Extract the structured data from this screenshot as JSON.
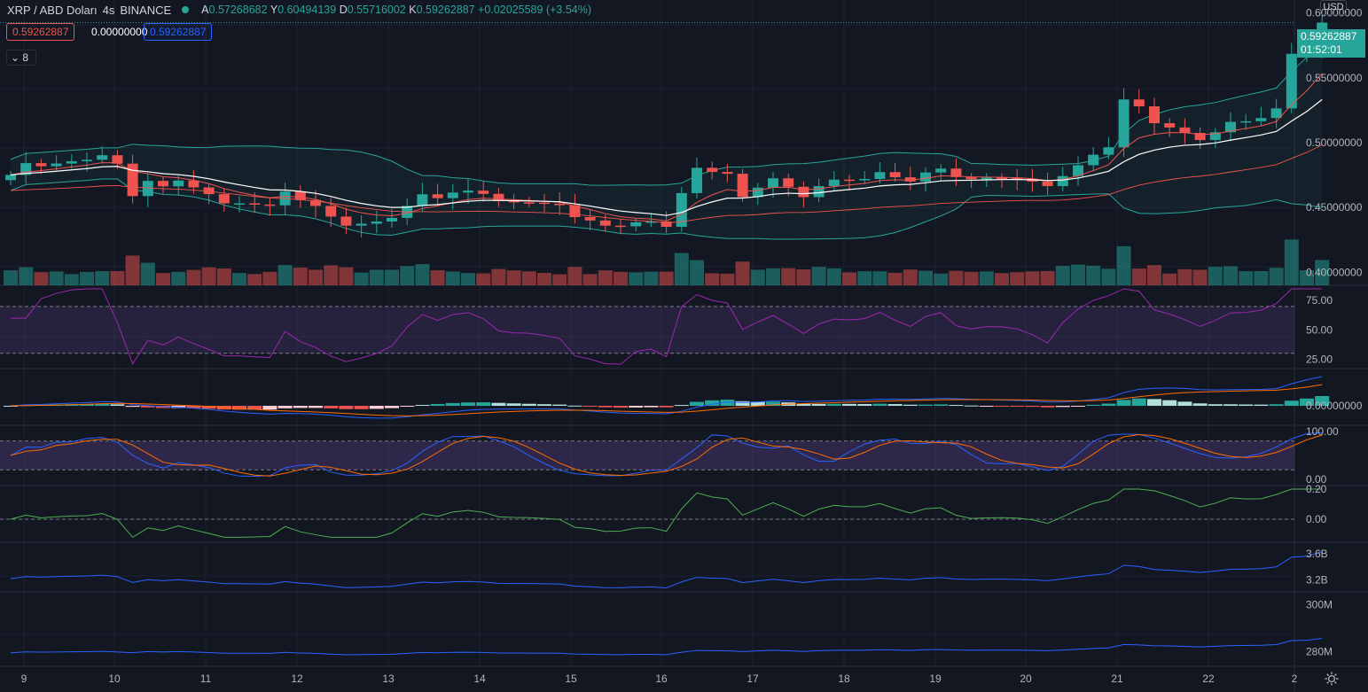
{
  "header": {
    "symbol": "XRP / ABD Doları",
    "interval": "4s",
    "exchange": "BINANCE",
    "ohlc_line": "A0.57268682 Y0.60494139 D0.55716002 K0.59262887 +0.02025589 (+3.54%)",
    "o_label": "A",
    "o_value": "0.57268682",
    "h_label": "Y",
    "h_value": "0.60494139",
    "l_label": "D",
    "l_value": "0.55716002",
    "c_label": "K",
    "c_value": "0.59262887",
    "change": "+0.02025589 (+3.54%)",
    "status_color": "#26a69a"
  },
  "trading": {
    "sell_price": "0.59262887",
    "spread": "0.00000000",
    "buy_price": "0.59262887",
    "indicator_count": "8"
  },
  "price_scale": {
    "currency": "USD",
    "last_price": "0.59262887",
    "countdown": "01:52:01",
    "ticks": [
      "0.60000000",
      "0.55000000",
      "0.50000000",
      "0.45000000",
      "0.40000000"
    ]
  },
  "panes": {
    "rsi": {
      "ticks": [
        "75.00",
        "50.00",
        "25.00"
      ]
    },
    "macd": {
      "ticks": [
        "0.00000000"
      ]
    },
    "stoch": {
      "ticks": [
        "100.00",
        "0.00"
      ]
    },
    "osc": {
      "ticks": [
        "0.20",
        "0.00"
      ]
    },
    "obv": {
      "ticks": [
        "3.6B",
        "3.2B"
      ]
    },
    "vol": {
      "ticks": [
        "300M",
        "280M"
      ]
    }
  },
  "time_axis": [
    "9",
    "10",
    "11",
    "12",
    "13",
    "14",
    "15",
    "16",
    "17",
    "18",
    "19",
    "20",
    "21",
    "22",
    "2"
  ],
  "colors": {
    "up": "#26a69a",
    "down": "#ef5350",
    "background": "#131722",
    "grid": "#1e222d",
    "rsi": "#9c27b0",
    "macd": "#2962ff",
    "signal": "#ff6d00"
  },
  "chart_data": {
    "type": "candlestick",
    "closes": [
      0.4751,
      0.4842,
      0.4818,
      0.4839,
      0.4857,
      0.4868,
      0.4903,
      0.4838,
      0.4588,
      0.4705,
      0.4663,
      0.4708,
      0.4655,
      0.4603,
      0.4532,
      0.4532,
      0.4523,
      0.4517,
      0.4623,
      0.4557,
      0.4512,
      0.443,
      0.436,
      0.4375,
      0.4392,
      0.442,
      0.4512,
      0.4602,
      0.4572,
      0.4615,
      0.463,
      0.4605,
      0.455,
      0.454,
      0.4538,
      0.4529,
      0.4518,
      0.4426,
      0.44,
      0.436,
      0.4355,
      0.4386,
      0.4392,
      0.4351,
      0.4611,
      0.4806,
      0.4774,
      0.476,
      0.4581,
      0.4653,
      0.4725,
      0.466,
      0.458,
      0.4665,
      0.4715,
      0.471,
      0.472,
      0.4773,
      0.4733,
      0.47,
      0.477,
      0.48,
      0.4735,
      0.4718,
      0.473,
      0.4729,
      0.4721,
      0.47,
      0.4665,
      0.4742,
      0.4826,
      0.4907,
      0.4964,
      0.5333,
      0.528,
      0.515,
      0.5117,
      0.5075,
      0.502,
      0.508,
      0.516,
      0.5165,
      0.519,
      0.5264,
      0.5685,
      0.5725,
      0.5926
    ],
    "series": [
      {
        "name": "Bollinger upper"
      },
      {
        "name": "Bollinger lower"
      },
      {
        "name": "EMA"
      },
      {
        "name": "SMA"
      }
    ],
    "ylim": [
      0.39,
      0.61
    ]
  }
}
